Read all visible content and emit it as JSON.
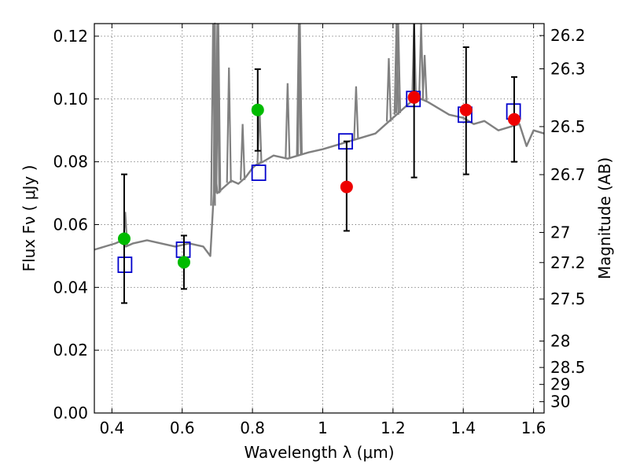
{
  "chart_data": {
    "type": "scatter",
    "title": "",
    "xlabel": "Wavelength  λ (μm)",
    "ylabel": "Flux  Fν  ( μJy )",
    "ylabel_right": "Magnitude (AB)",
    "xlim": [
      0.35,
      1.63
    ],
    "ylim": [
      0.0,
      0.124
    ],
    "grid": true,
    "x_ticks": [
      0.4,
      0.6,
      0.8,
      1.0,
      1.2,
      1.4,
      1.6
    ],
    "x_tick_labels": [
      "0.4",
      "0.6",
      "0.8",
      "1",
      "1.2",
      "1.4",
      "1.6"
    ],
    "y_ticks": [
      0.0,
      0.02,
      0.04,
      0.06,
      0.08,
      0.1,
      0.12
    ],
    "y_tick_labels": [
      "0.00",
      "0.02",
      "0.04",
      "0.06",
      "0.08",
      "0.10",
      "0.12"
    ],
    "right_ticks": [
      {
        "flux": 0.1202,
        "label": "26.2"
      },
      {
        "flux": 0.1096,
        "label": "26.3"
      },
      {
        "flux": 0.0912,
        "label": "26.5"
      },
      {
        "flux": 0.0759,
        "label": "26.7"
      },
      {
        "flux": 0.0575,
        "label": "27"
      },
      {
        "flux": 0.0479,
        "label": "27.2"
      },
      {
        "flux": 0.0363,
        "label": "27.5"
      },
      {
        "flux": 0.0229,
        "label": "28"
      },
      {
        "flux": 0.0145,
        "label": "28.5"
      },
      {
        "flux": 0.0091,
        "label": "29"
      },
      {
        "flux": 0.0036,
        "label": "30"
      }
    ],
    "colors": {
      "model": "#808080",
      "green": "#00bb00",
      "red": "#ee0000",
      "box": "#0000cc",
      "errorbar": "#000000"
    },
    "model_spectrum": {
      "x": [
        0.35,
        0.38,
        0.41,
        0.43,
        0.44,
        0.46,
        0.5,
        0.54,
        0.58,
        0.62,
        0.66,
        0.68,
        0.69,
        0.693,
        0.696,
        0.7,
        0.72,
        0.74,
        0.76,
        0.78,
        0.8,
        0.81,
        0.83,
        0.86,
        0.9,
        0.93,
        0.96,
        1.0,
        1.03,
        1.06,
        1.09,
        1.12,
        1.15,
        1.18,
        1.21,
        1.25,
        1.28,
        1.3,
        1.33,
        1.36,
        1.4,
        1.43,
        1.46,
        1.5,
        1.53,
        1.56,
        1.58,
        1.6,
        1.63
      ],
      "y": [
        0.052,
        0.053,
        0.054,
        0.055,
        0.053,
        0.054,
        0.055,
        0.054,
        0.053,
        0.054,
        0.053,
        0.05,
        0.07,
        0.124,
        0.075,
        0.07,
        0.072,
        0.074,
        0.073,
        0.075,
        0.078,
        0.079,
        0.08,
        0.082,
        0.081,
        0.082,
        0.083,
        0.084,
        0.085,
        0.086,
        0.087,
        0.088,
        0.089,
        0.092,
        0.095,
        0.099,
        0.1,
        0.099,
        0.097,
        0.095,
        0.094,
        0.092,
        0.093,
        0.09,
        0.091,
        0.092,
        0.085,
        0.09,
        0.089
      ]
    },
    "model_lines": [
      {
        "x": 0.438,
        "peak": 0.064
      },
      {
        "x": 0.688,
        "peak": 0.124
      },
      {
        "x": 0.7,
        "peak": 0.124
      },
      {
        "x": 0.703,
        "peak": 0.124
      },
      {
        "x": 0.733,
        "peak": 0.11
      },
      {
        "x": 0.772,
        "peak": 0.092
      },
      {
        "x": 0.82,
        "peak": 0.098
      },
      {
        "x": 0.9,
        "peak": 0.105
      },
      {
        "x": 0.932,
        "peak": 0.124
      },
      {
        "x": 0.935,
        "peak": 0.124
      },
      {
        "x": 1.095,
        "peak": 0.104
      },
      {
        "x": 1.188,
        "peak": 0.113
      },
      {
        "x": 1.21,
        "peak": 0.124
      },
      {
        "x": 1.215,
        "peak": 0.124
      },
      {
        "x": 1.26,
        "peak": 0.124
      },
      {
        "x": 1.28,
        "peak": 0.124
      },
      {
        "x": 1.29,
        "peak": 0.114
      }
    ],
    "series": [
      {
        "marker": "circle",
        "color": "green",
        "points": [
          {
            "x": 0.435,
            "y": 0.0555,
            "yerr_low": 0.035,
            "yerr_high": 0.076
          },
          {
            "x": 0.605,
            "y": 0.048,
            "yerr_low": 0.0395,
            "yerr_high": 0.0565
          },
          {
            "x": 0.815,
            "y": 0.0965,
            "yerr_low": 0.0835,
            "yerr_high": 0.1095
          }
        ]
      },
      {
        "marker": "circle",
        "color": "red",
        "points": [
          {
            "x": 1.068,
            "y": 0.072,
            "yerr_low": 0.058,
            "yerr_high": 0.0865
          },
          {
            "x": 1.26,
            "y": 0.1005,
            "yerr_low": 0.075,
            "yerr_high": 0.126
          },
          {
            "x": 1.408,
            "y": 0.0965,
            "yerr_low": 0.076,
            "yerr_high": 0.1165
          },
          {
            "x": 1.545,
            "y": 0.0935,
            "yerr_low": 0.08,
            "yerr_high": 0.107
          }
        ]
      },
      {
        "marker": "square",
        "color": "box",
        "points": [
          {
            "x": 0.437,
            "y": 0.0472
          },
          {
            "x": 0.603,
            "y": 0.052
          },
          {
            "x": 0.818,
            "y": 0.0765
          },
          {
            "x": 1.065,
            "y": 0.0865
          },
          {
            "x": 1.258,
            "y": 0.1
          },
          {
            "x": 1.405,
            "y": 0.095
          },
          {
            "x": 1.543,
            "y": 0.096
          }
        ]
      }
    ]
  }
}
